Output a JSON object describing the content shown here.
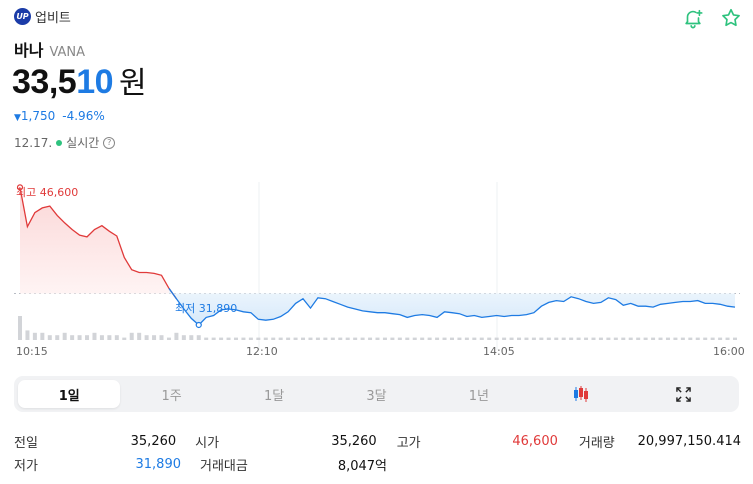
{
  "header": {
    "logo_text": "UP",
    "exchange_name": "업비트"
  },
  "icons": {
    "alert": "bell-plus-icon",
    "favorite": "star-icon",
    "accent_color": "#2ec27e"
  },
  "coin": {
    "name_ko": "바나",
    "symbol": "VANA"
  },
  "price": {
    "main": "33,5",
    "accent": "10",
    "unit": "원"
  },
  "change": {
    "arrow": "▼",
    "amount": "1,750",
    "percent": "-4.96%"
  },
  "status": {
    "date": "12.17.",
    "label": "실시간",
    "help": "?"
  },
  "chart_data": {
    "type": "line",
    "high_label": "최고 46,600",
    "low_label": "최저 31,890",
    "x_ticks": [
      "10:15",
      "12:10",
      "14:05",
      "16:00"
    ],
    "reference_value": 35260,
    "ylim": [
      30500,
      47600
    ],
    "up_color": "#e03a3a",
    "down_color": "#1e7be3",
    "values": [
      46600,
      42400,
      43900,
      44400,
      44600,
      43600,
      42800,
      42100,
      41500,
      41300,
      42100,
      42500,
      41900,
      41400,
      39100,
      37800,
      37500,
      37500,
      37400,
      37200,
      35800,
      34700,
      33600,
      32600,
      31890,
      32700,
      32900,
      33500,
      33600,
      33500,
      33300,
      33200,
      32500,
      32400,
      32500,
      32800,
      33300,
      34200,
      34700,
      33700,
      34800,
      34700,
      34400,
      34100,
      33800,
      33600,
      33400,
      33300,
      33200,
      33200,
      33100,
      33000,
      32700,
      32900,
      33000,
      32900,
      32700,
      33300,
      33200,
      33100,
      32800,
      32900,
      32700,
      32800,
      32900,
      32800,
      32900,
      32900,
      33000,
      33200,
      33900,
      34300,
      34500,
      34400,
      34900,
      34700,
      34400,
      34200,
      34300,
      34800,
      34600,
      34000,
      34200,
      33900,
      33900,
      33800,
      34100,
      34200,
      34300,
      34400,
      34400,
      34500,
      34200,
      34200,
      34100,
      33900,
      33800
    ],
    "volumes": [
      10,
      4,
      3,
      3,
      2,
      2,
      3,
      2,
      2,
      2,
      3,
      2,
      2,
      2,
      1,
      3,
      3,
      2,
      2,
      2,
      1,
      3,
      2,
      2,
      2,
      1,
      1,
      1,
      1,
      1,
      1,
      1,
      1,
      1,
      1,
      1,
      1,
      1,
      1,
      1,
      1,
      1,
      1,
      1,
      1,
      1,
      1,
      1,
      1,
      1,
      1,
      1,
      1,
      1,
      1,
      1,
      1,
      1,
      1,
      1,
      1,
      1,
      1,
      1,
      1,
      1,
      1,
      1,
      1,
      1,
      1,
      1,
      1,
      1,
      1,
      1,
      1,
      1,
      1,
      1,
      1,
      1,
      1,
      1,
      1,
      1,
      1,
      1,
      1,
      1,
      1,
      1,
      1,
      1,
      1,
      1,
      1
    ]
  },
  "periods": [
    {
      "label": "1일",
      "active": true
    },
    {
      "label": "1주",
      "active": false
    },
    {
      "label": "1달",
      "active": false
    },
    {
      "label": "3달",
      "active": false
    },
    {
      "label": "1년",
      "active": false
    },
    {
      "label": "candle-chart-icon",
      "active": false
    },
    {
      "label": "expand-icon",
      "active": false
    }
  ],
  "stats": {
    "prev_close_label": "전일",
    "prev_close": "35,260",
    "open_label": "시가",
    "open": "35,260",
    "high_label": "고가",
    "high": "46,600",
    "volume_label": "거래량",
    "volume": "20,997,150.414",
    "low_label": "저가",
    "low": "31,890",
    "amount_label": "거래대금",
    "amount": "8,047억"
  }
}
